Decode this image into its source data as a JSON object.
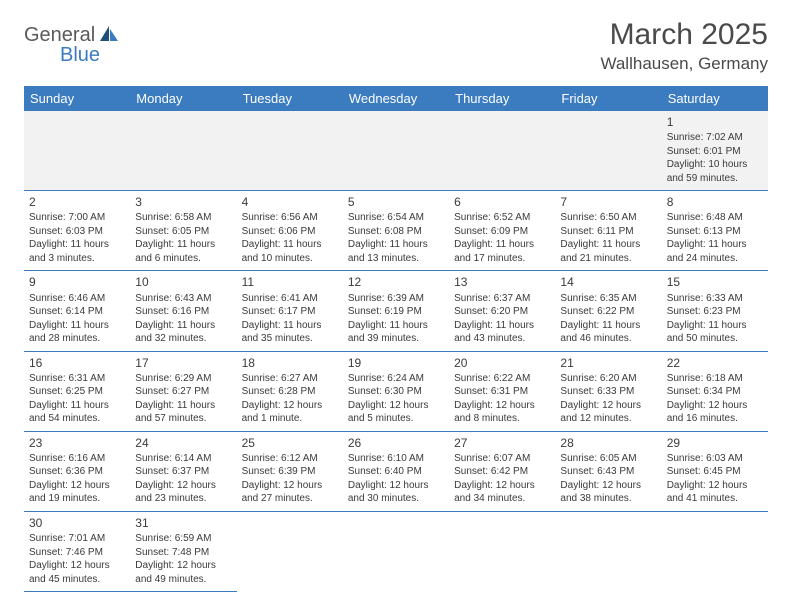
{
  "logo": {
    "part1": "General",
    "part2": "Blue"
  },
  "title": "March 2025",
  "location": "Wallhausen, Germany",
  "colors": {
    "header_bg": "#3b7bbf",
    "header_text": "#ffffff",
    "border": "#3b7bbf",
    "text": "#3a3a3a",
    "logo_gray": "#5a5a5a",
    "logo_blue": "#3b7bbf"
  },
  "weekdays": [
    "Sunday",
    "Monday",
    "Tuesday",
    "Wednesday",
    "Thursday",
    "Friday",
    "Saturday"
  ],
  "weeks": [
    [
      null,
      null,
      null,
      null,
      null,
      null,
      {
        "n": "1",
        "sr": "Sunrise: 7:02 AM",
        "ss": "Sunset: 6:01 PM",
        "dl": "Daylight: 10 hours and 59 minutes."
      }
    ],
    [
      {
        "n": "2",
        "sr": "Sunrise: 7:00 AM",
        "ss": "Sunset: 6:03 PM",
        "dl": "Daylight: 11 hours and 3 minutes."
      },
      {
        "n": "3",
        "sr": "Sunrise: 6:58 AM",
        "ss": "Sunset: 6:05 PM",
        "dl": "Daylight: 11 hours and 6 minutes."
      },
      {
        "n": "4",
        "sr": "Sunrise: 6:56 AM",
        "ss": "Sunset: 6:06 PM",
        "dl": "Daylight: 11 hours and 10 minutes."
      },
      {
        "n": "5",
        "sr": "Sunrise: 6:54 AM",
        "ss": "Sunset: 6:08 PM",
        "dl": "Daylight: 11 hours and 13 minutes."
      },
      {
        "n": "6",
        "sr": "Sunrise: 6:52 AM",
        "ss": "Sunset: 6:09 PM",
        "dl": "Daylight: 11 hours and 17 minutes."
      },
      {
        "n": "7",
        "sr": "Sunrise: 6:50 AM",
        "ss": "Sunset: 6:11 PM",
        "dl": "Daylight: 11 hours and 21 minutes."
      },
      {
        "n": "8",
        "sr": "Sunrise: 6:48 AM",
        "ss": "Sunset: 6:13 PM",
        "dl": "Daylight: 11 hours and 24 minutes."
      }
    ],
    [
      {
        "n": "9",
        "sr": "Sunrise: 6:46 AM",
        "ss": "Sunset: 6:14 PM",
        "dl": "Daylight: 11 hours and 28 minutes."
      },
      {
        "n": "10",
        "sr": "Sunrise: 6:43 AM",
        "ss": "Sunset: 6:16 PM",
        "dl": "Daylight: 11 hours and 32 minutes."
      },
      {
        "n": "11",
        "sr": "Sunrise: 6:41 AM",
        "ss": "Sunset: 6:17 PM",
        "dl": "Daylight: 11 hours and 35 minutes."
      },
      {
        "n": "12",
        "sr": "Sunrise: 6:39 AM",
        "ss": "Sunset: 6:19 PM",
        "dl": "Daylight: 11 hours and 39 minutes."
      },
      {
        "n": "13",
        "sr": "Sunrise: 6:37 AM",
        "ss": "Sunset: 6:20 PM",
        "dl": "Daylight: 11 hours and 43 minutes."
      },
      {
        "n": "14",
        "sr": "Sunrise: 6:35 AM",
        "ss": "Sunset: 6:22 PM",
        "dl": "Daylight: 11 hours and 46 minutes."
      },
      {
        "n": "15",
        "sr": "Sunrise: 6:33 AM",
        "ss": "Sunset: 6:23 PM",
        "dl": "Daylight: 11 hours and 50 minutes."
      }
    ],
    [
      {
        "n": "16",
        "sr": "Sunrise: 6:31 AM",
        "ss": "Sunset: 6:25 PM",
        "dl": "Daylight: 11 hours and 54 minutes."
      },
      {
        "n": "17",
        "sr": "Sunrise: 6:29 AM",
        "ss": "Sunset: 6:27 PM",
        "dl": "Daylight: 11 hours and 57 minutes."
      },
      {
        "n": "18",
        "sr": "Sunrise: 6:27 AM",
        "ss": "Sunset: 6:28 PM",
        "dl": "Daylight: 12 hours and 1 minute."
      },
      {
        "n": "19",
        "sr": "Sunrise: 6:24 AM",
        "ss": "Sunset: 6:30 PM",
        "dl": "Daylight: 12 hours and 5 minutes."
      },
      {
        "n": "20",
        "sr": "Sunrise: 6:22 AM",
        "ss": "Sunset: 6:31 PM",
        "dl": "Daylight: 12 hours and 8 minutes."
      },
      {
        "n": "21",
        "sr": "Sunrise: 6:20 AM",
        "ss": "Sunset: 6:33 PM",
        "dl": "Daylight: 12 hours and 12 minutes."
      },
      {
        "n": "22",
        "sr": "Sunrise: 6:18 AM",
        "ss": "Sunset: 6:34 PM",
        "dl": "Daylight: 12 hours and 16 minutes."
      }
    ],
    [
      {
        "n": "23",
        "sr": "Sunrise: 6:16 AM",
        "ss": "Sunset: 6:36 PM",
        "dl": "Daylight: 12 hours and 19 minutes."
      },
      {
        "n": "24",
        "sr": "Sunrise: 6:14 AM",
        "ss": "Sunset: 6:37 PM",
        "dl": "Daylight: 12 hours and 23 minutes."
      },
      {
        "n": "25",
        "sr": "Sunrise: 6:12 AM",
        "ss": "Sunset: 6:39 PM",
        "dl": "Daylight: 12 hours and 27 minutes."
      },
      {
        "n": "26",
        "sr": "Sunrise: 6:10 AM",
        "ss": "Sunset: 6:40 PM",
        "dl": "Daylight: 12 hours and 30 minutes."
      },
      {
        "n": "27",
        "sr": "Sunrise: 6:07 AM",
        "ss": "Sunset: 6:42 PM",
        "dl": "Daylight: 12 hours and 34 minutes."
      },
      {
        "n": "28",
        "sr": "Sunrise: 6:05 AM",
        "ss": "Sunset: 6:43 PM",
        "dl": "Daylight: 12 hours and 38 minutes."
      },
      {
        "n": "29",
        "sr": "Sunrise: 6:03 AM",
        "ss": "Sunset: 6:45 PM",
        "dl": "Daylight: 12 hours and 41 minutes."
      }
    ],
    [
      {
        "n": "30",
        "sr": "Sunrise: 7:01 AM",
        "ss": "Sunset: 7:46 PM",
        "dl": "Daylight: 12 hours and 45 minutes."
      },
      {
        "n": "31",
        "sr": "Sunrise: 6:59 AM",
        "ss": "Sunset: 7:48 PM",
        "dl": "Daylight: 12 hours and 49 minutes."
      },
      null,
      null,
      null,
      null,
      null
    ]
  ]
}
